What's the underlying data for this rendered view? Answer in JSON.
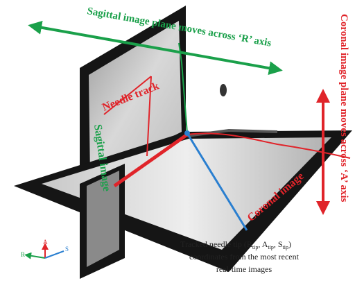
{
  "labels": {
    "sagittal_motion": "Sagittal image plane moves across ‘R’ axis",
    "coronal_motion": "Coronal image plane moves across ‘A’ axis",
    "needle_track": "Needle track",
    "sagittal_image": "Sagittal image",
    "coronal_image": "Coronal image"
  },
  "caption": {
    "line1": [
      "Tracked needle tip (R",
      "tip",
      ", A",
      "tip",
      ", S",
      "tip",
      ")"
    ],
    "line2": "coordinates from the most recent",
    "line3": "real-time images"
  },
  "axes": {
    "r": "R",
    "a": "A",
    "s": "S"
  }
}
